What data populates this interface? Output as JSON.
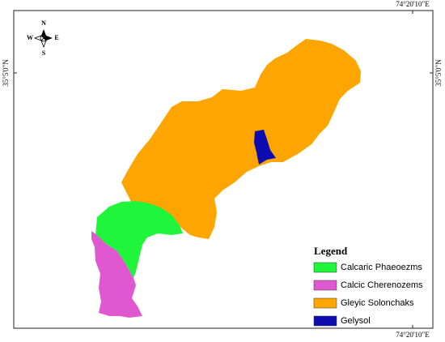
{
  "map": {
    "coordinates": {
      "top": "74°20'10\"E",
      "bottom": "74°20'10\"E",
      "left": "35°5'0\"N",
      "right": "35°5'0\"N"
    },
    "compass": {
      "north": "N",
      "south": "S",
      "east": "E",
      "west": "W"
    },
    "legend": {
      "title": "Legend",
      "items": [
        {
          "label": "Calcaric Phaeoezms",
          "color": "#1ff53a"
        },
        {
          "label": "Calcic Cherenozems",
          "color": "#df58d0"
        },
        {
          "label": "Gleyic Solonchaks",
          "color": "#ffa500"
        },
        {
          "label": "Gelysol",
          "color": "#0c0cb0"
        }
      ]
    }
  }
}
